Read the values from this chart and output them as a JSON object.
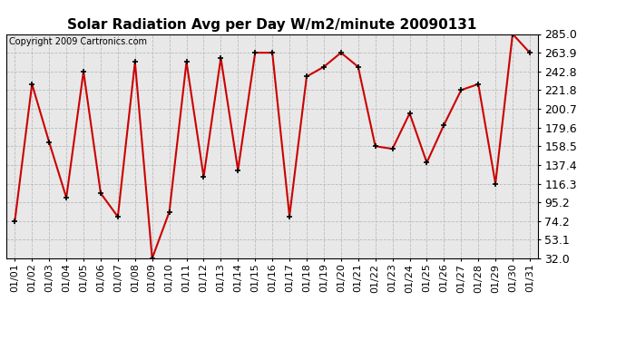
{
  "title": "Solar Radiation Avg per Day W/m2/minute 20090131",
  "copyright_text": "Copyright 2009 Cartronics.com",
  "dates": [
    "01/01",
    "01/02",
    "01/03",
    "01/04",
    "01/05",
    "01/06",
    "01/07",
    "01/08",
    "01/09",
    "01/10",
    "01/11",
    "01/12",
    "01/13",
    "01/14",
    "01/15",
    "01/16",
    "01/17",
    "01/18",
    "01/19",
    "01/20",
    "01/21",
    "01/22",
    "01/23",
    "01/24",
    "01/25",
    "01/26",
    "01/27",
    "01/28",
    "01/29",
    "01/30",
    "01/31"
  ],
  "values": [
    74.2,
    228.5,
    163.0,
    100.5,
    242.8,
    105.5,
    79.0,
    253.5,
    32.0,
    84.5,
    253.5,
    124.0,
    258.0,
    131.5,
    263.9,
    263.9,
    79.5,
    237.0,
    248.0,
    263.9,
    248.0,
    158.5,
    155.5,
    195.5,
    140.0,
    182.5,
    221.8,
    228.5,
    116.3,
    285.0,
    263.9
  ],
  "ylim_min": 32.0,
  "ylim_max": 285.0,
  "yticks": [
    32.0,
    53.1,
    74.2,
    95.2,
    116.3,
    137.4,
    158.5,
    179.6,
    200.7,
    221.8,
    242.8,
    263.9,
    285.0
  ],
  "ytick_labels": [
    "32.0",
    "53.1",
    "74.2",
    "95.2",
    "116.3",
    "137.4",
    "158.5",
    "179.6",
    "200.7",
    "221.8",
    "242.8",
    "263.9",
    "285.0"
  ],
  "line_color": "#cc0000",
  "marker": "+",
  "marker_size": 5,
  "marker_color": "#000000",
  "background_color": "#ffffff",
  "plot_bg_color": "#e8e8e8",
  "grid_color": "#bbbbbb",
  "title_fontsize": 11,
  "copyright_fontsize": 7,
  "tick_fontsize": 8,
  "ytick_fontsize": 9
}
